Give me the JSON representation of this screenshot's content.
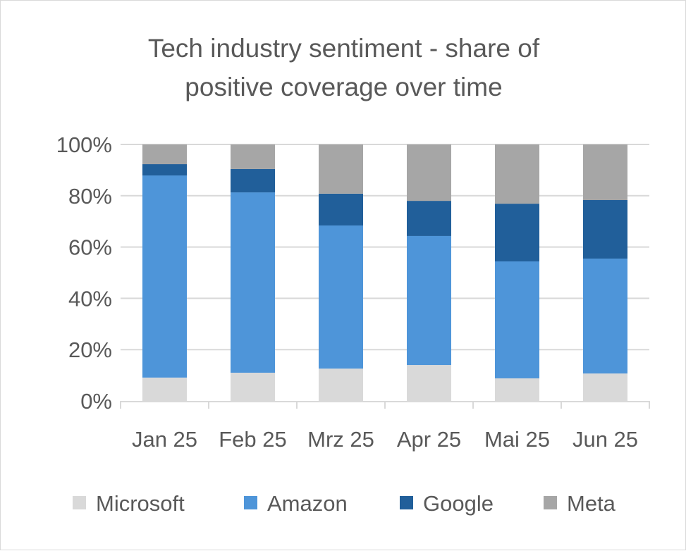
{
  "chart_data": {
    "type": "bar",
    "stacked": "percent",
    "title_lines": [
      "Tech industry sentiment - share of",
      "positive coverage over time"
    ],
    "categories": [
      "Jan 25",
      "Feb 25",
      "Mrz 25",
      "Apr 25",
      "Mai 25",
      "Jun 25"
    ],
    "series": [
      {
        "name": "Microsoft",
        "color": "#d9d9d9",
        "values": [
          9.1,
          11.0,
          12.6,
          14.0,
          8.8,
          10.7
        ]
      },
      {
        "name": "Amazon",
        "color": "#4e95d9",
        "values": [
          78.8,
          70.3,
          55.8,
          50.3,
          45.6,
          44.8
        ]
      },
      {
        "name": "Google",
        "color": "#215f9a",
        "values": [
          4.4,
          9.1,
          12.4,
          13.7,
          22.5,
          22.8
        ]
      },
      {
        "name": "Meta",
        "color": "#a6a6a6",
        "values": [
          7.7,
          9.6,
          19.2,
          22.0,
          23.1,
          21.7
        ]
      }
    ],
    "yticks": [
      "0%",
      "20%",
      "40%",
      "60%",
      "80%",
      "100%"
    ],
    "ylim": [
      0,
      100
    ],
    "grid": true,
    "legend": "bottom",
    "xlabel": "",
    "ylabel": ""
  }
}
